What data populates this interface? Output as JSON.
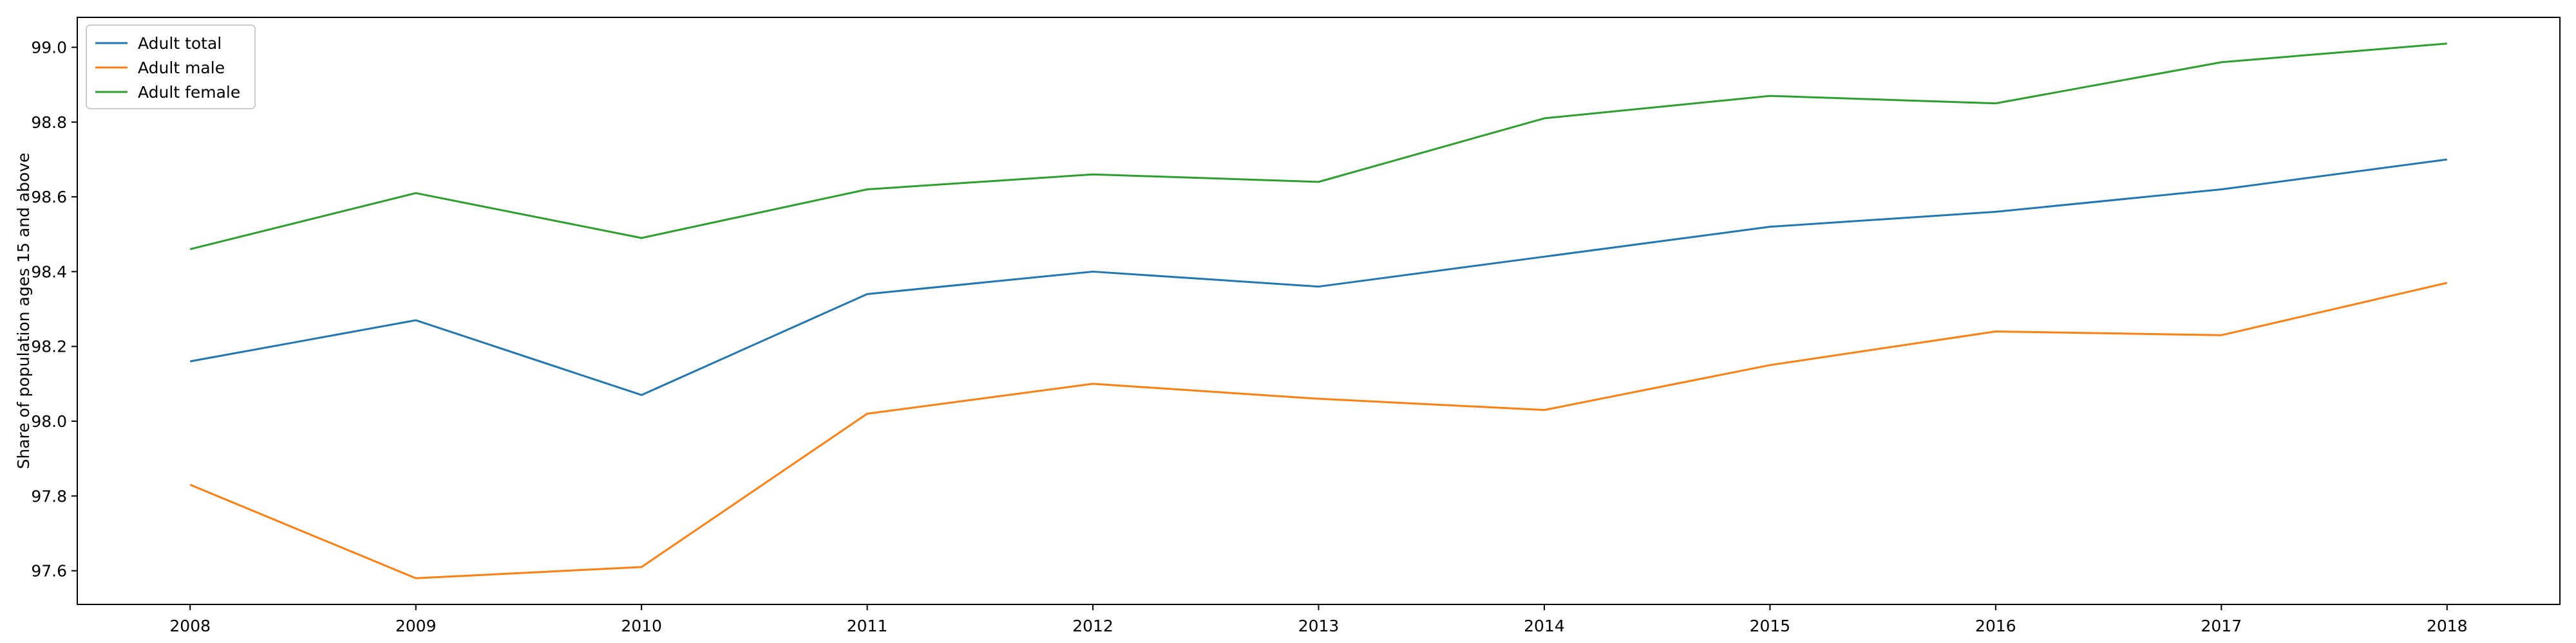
{
  "chart_data": {
    "type": "line",
    "title": "",
    "xlabel": "",
    "ylabel": "Share of population ages 15 and above",
    "x": [
      2008,
      2009,
      2010,
      2011,
      2012,
      2013,
      2014,
      2015,
      2016,
      2017,
      2018
    ],
    "xticks": [
      "2008",
      "2009",
      "2010",
      "2011",
      "2012",
      "2013",
      "2014",
      "2015",
      "2016",
      "2017",
      "2018"
    ],
    "yticks": [
      "97.6",
      "97.8",
      "98.0",
      "98.2",
      "98.4",
      "98.6",
      "98.8",
      "99.0"
    ],
    "ylim": [
      97.51,
      99.08
    ],
    "xlim": [
      2007.5,
      2018.5
    ],
    "grid": false,
    "legend_position": "top-left",
    "series": [
      {
        "name": "Adult total",
        "color": "#1f77b4",
        "values": [
          98.16,
          98.27,
          98.07,
          98.34,
          98.4,
          98.36,
          98.44,
          98.52,
          98.56,
          98.62,
          98.7
        ]
      },
      {
        "name": "Adult male",
        "color": "#ff7f0e",
        "values": [
          97.83,
          97.58,
          97.61,
          98.02,
          98.1,
          98.06,
          98.03,
          98.15,
          98.24,
          98.23,
          98.37
        ]
      },
      {
        "name": "Adult female",
        "color": "#2ca02c",
        "values": [
          98.46,
          98.61,
          98.49,
          98.62,
          98.66,
          98.64,
          98.81,
          98.87,
          98.85,
          98.96,
          99.01
        ]
      }
    ]
  }
}
